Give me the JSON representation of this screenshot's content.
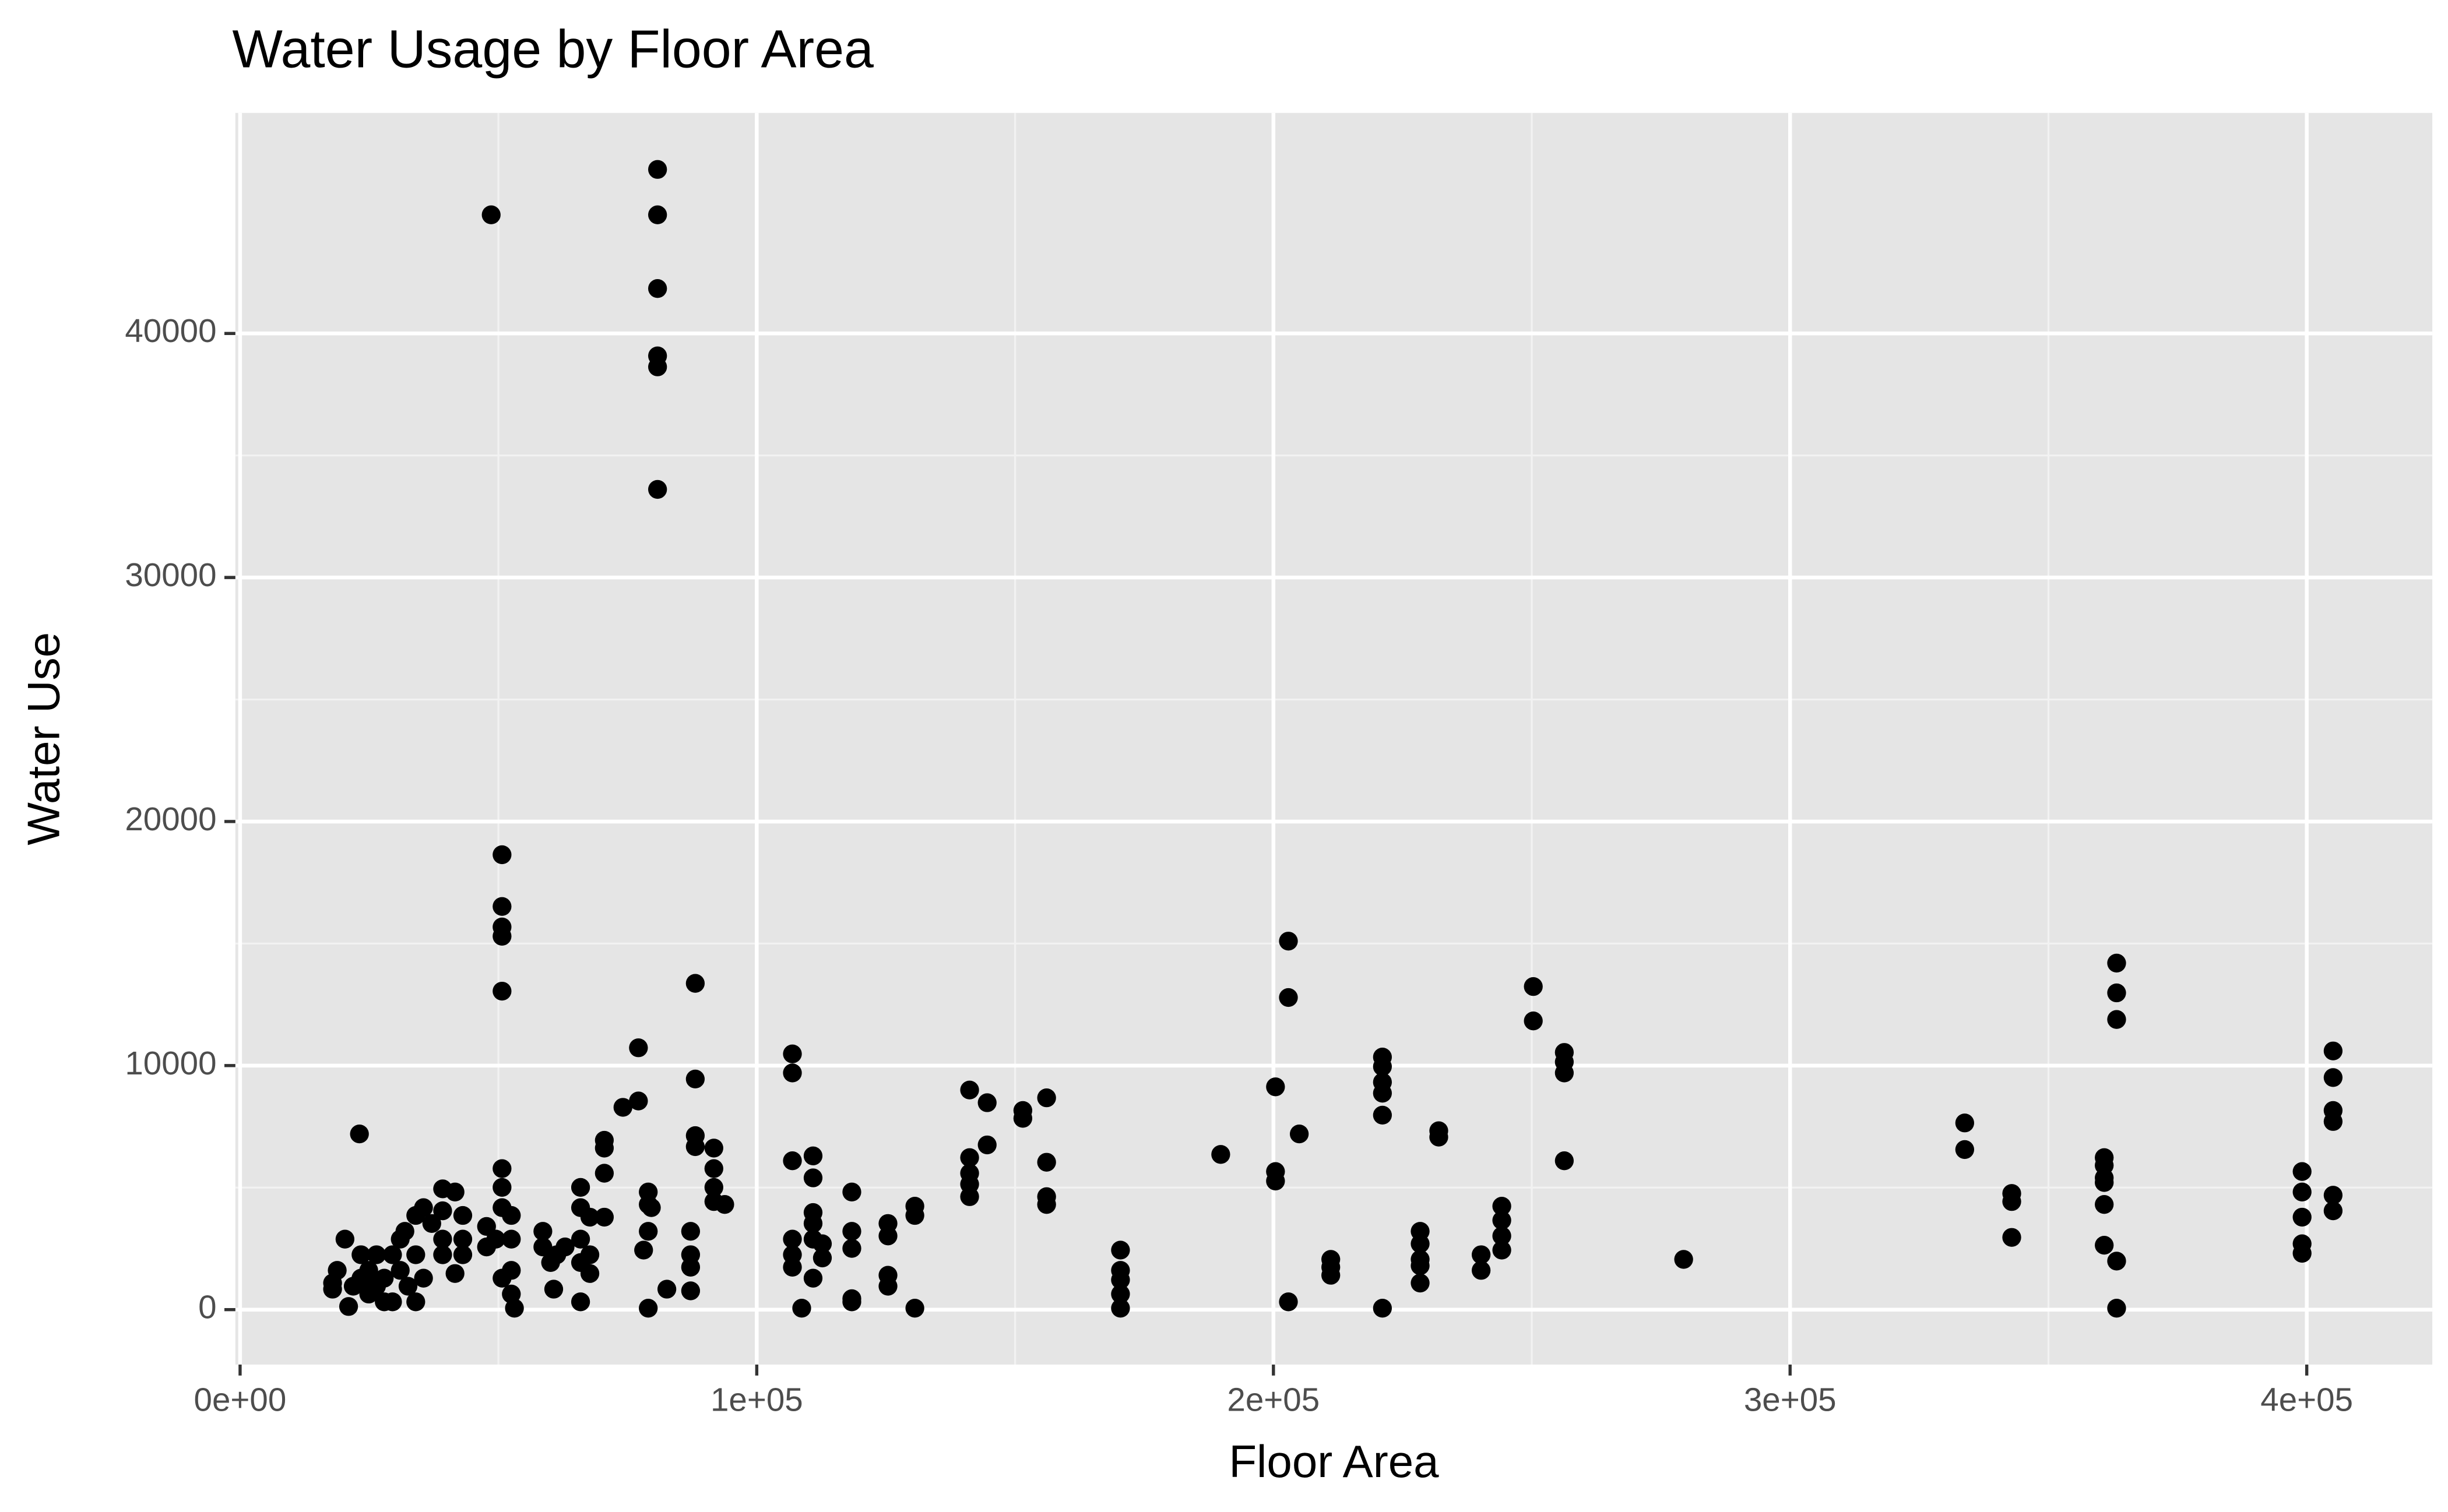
{
  "chart_data": {
    "type": "scatter",
    "title": "Water Usage by Floor Area",
    "x_label": "Floor Area",
    "y_label": "Water Use",
    "color": "#000000",
    "grid": true,
    "xlim": [
      -911,
      424300
    ],
    "ylim": [
      -2250,
      49035
    ],
    "xticks": [
      {
        "value": 0,
        "label": "0e+00"
      },
      {
        "value": 100000,
        "label": "1e+05"
      },
      {
        "value": 200000,
        "label": "2e+05"
      },
      {
        "value": 300000,
        "label": "3e+05"
      },
      {
        "value": 400000,
        "label": "4e+05"
      }
    ],
    "yticks": [
      0,
      10000,
      20000,
      30000,
      40000
    ],
    "series": [
      {
        "name": "Water Use",
        "x": [
          48600,
          80800,
          80800,
          80800,
          80800,
          80800,
          80800,
          50700,
          50700,
          50700,
          50700,
          50700,
          50700,
          50700,
          23100,
          88100,
          88100,
          88100,
          88100,
          91700,
          91700,
          91700,
          91700,
          93800,
          77100,
          77100,
          74100,
          70500,
          70500,
          70500,
          106900,
          106900,
          106900,
          110900,
          110900,
          118400,
          141200,
          144600,
          144600,
          141200,
          141200,
          141200,
          141200,
          151500,
          151500,
          156100,
          156100,
          156100,
          156100,
          170400,
          170400,
          170400,
          170400,
          170400,
          189800,
          200400,
          200400,
          200400,
          202900,
          202900,
          205000,
          202900,
          211100,
          211100,
          211100,
          221100,
          221100,
          221100,
          221100,
          221100,
          221100,
          232000,
          232000,
          228400,
          228400,
          228400,
          228400,
          228400,
          240200,
          240200,
          244200,
          244200,
          244200,
          244200,
          250300,
          250300,
          256300,
          256300,
          256300,
          256300,
          279400,
          333800,
          333800,
          342900,
          342900,
          342900,
          363200,
          363200,
          363200,
          360800,
          360800,
          360800,
          360800,
          360800,
          360800,
          363200,
          363200,
          399100,
          399100,
          399100,
          399100,
          399100,
          405100,
          405100,
          405100,
          405100,
          405100,
          405100,
          106900,
          106900,
          106900,
          108700,
          110900,
          110900,
          110900,
          110900,
          112700,
          112700,
          118400,
          118400,
          118400,
          118400,
          125400,
          125400,
          125400,
          125400,
          130600,
          130600,
          130600,
          87200,
          87200,
          87200,
          87200,
          79000,
          79000,
          79000,
          78100,
          79000,
          82600,
          79600,
          65900,
          65900,
          65900,
          65900,
          65900,
          67700,
          67700,
          67700,
          70500,
          58600,
          58600,
          60100,
          61300,
          60700,
          62900,
          52500,
          52500,
          52500,
          52500,
          53100,
          50700,
          50700,
          49500,
          47700,
          47700,
          43100,
          43100,
          43100,
          41600,
          41600,
          39200,
          39200,
          39200,
          39200,
          37100,
          35500,
          34000,
          34000,
          34000,
          35500,
          31000,
          31000,
          29500,
          27900,
          27900,
          26400,
          26400,
          24900,
          24900,
          23400,
          23400,
          21900,
          21000,
          20300,
          18800,
          17900,
          17900,
          32500,
          29500,
          31900
        ],
        "values": [
          44860,
          46720,
          44860,
          41840,
          39080,
          38630,
          33610,
          18640,
          16520,
          15680,
          15300,
          13050,
          5780,
          5010,
          7200,
          13370,
          9450,
          7130,
          6680,
          6620,
          5780,
          5010,
          4430,
          4310,
          10730,
          8550,
          8290,
          6940,
          6620,
          5590,
          10480,
          9700,
          6100,
          6300,
          5400,
          4820,
          9000,
          8480,
          6750,
          6230,
          5590,
          5140,
          4630,
          8160,
          7840,
          8680,
          6040,
          4630,
          4310,
          2440,
          1610,
          1220,
          640,
          60,
          6360,
          9130,
          5660,
          5270,
          15100,
          12790,
          7200,
          320,
          2060,
          1740,
          1410,
          10350,
          9960,
          9320,
          8870,
          7970,
          60,
          7330,
          7070,
          3210,
          2700,
          2060,
          1800,
          1090,
          2250,
          1610,
          4240,
          3660,
          3020,
          2440,
          13240,
          11830,
          10540,
          10150,
          9700,
          6100,
          2060,
          7650,
          6560,
          4760,
          4430,
          2960,
          14200,
          12980,
          11890,
          6230,
          5910,
          5400,
          5210,
          4310,
          2640,
          1990,
          60,
          5660,
          4820,
          3790,
          2700,
          2310,
          10600,
          9510,
          8160,
          7710,
          4690,
          4050,
          2890,
          2250,
          1740,
          60,
          3980,
          3530,
          2890,
          1290,
          2700,
          2120,
          3210,
          2510,
          450,
          320,
          3530,
          3020,
          1410,
          960,
          4240,
          3860,
          60,
          3210,
          2250,
          1740,
          770,
          4820,
          4310,
          3210,
          2440,
          60,
          840,
          4180,
          5010,
          4180,
          2890,
          1930,
          320,
          3790,
          2250,
          1480,
          3790,
          3210,
          2570,
          1930,
          2250,
          840,
          2570,
          3860,
          2890,
          1610,
          640,
          60,
          4180,
          1290,
          2890,
          2570,
          3410,
          3860,
          2890,
          2250,
          1480,
          4820,
          4950,
          4050,
          2890,
          2250,
          3530,
          4180,
          3860,
          2250,
          320,
          1290,
          2890,
          1610,
          2250,
          1290,
          320,
          2250,
          960,
          1610,
          640,
          1290,
          2250,
          960,
          130,
          2890,
          1610,
          840,
          1090,
          960,
          320,
          3210
        ]
      }
    ]
  }
}
